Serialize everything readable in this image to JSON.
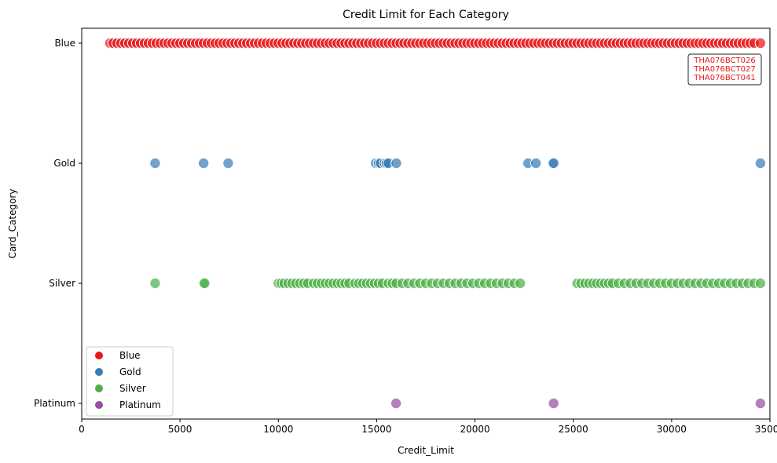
{
  "chart_data": {
    "type": "scatter",
    "title": "Credit Limit for Each Category",
    "xlabel": "Credit_Limit",
    "ylabel": "Card_Category",
    "xlim": [
      0,
      35000
    ],
    "x_ticks": [
      0,
      5000,
      10000,
      15000,
      20000,
      25000,
      30000,
      35000
    ],
    "categories": [
      "Blue",
      "Gold",
      "Silver",
      "Platinum"
    ],
    "grid": false,
    "legend_position": "lower-left",
    "series": [
      {
        "name": "Blue",
        "color": "#e41a1c",
        "x": [
          1438,
          1600,
          1800,
          2000,
          2200,
          2400,
          2600,
          2800,
          3000,
          3200,
          3400,
          3600,
          3800,
          4000,
          4200,
          4400,
          4600,
          4800,
          5000,
          5200,
          5400,
          5600,
          5800,
          6000,
          6200,
          6400,
          6600,
          6800,
          7000,
          7200,
          7400,
          7600,
          7800,
          8000,
          8200,
          8400,
          8600,
          8800,
          9000,
          9200,
          9400,
          9600,
          9800,
          10000,
          10200,
          10400,
          10600,
          10800,
          11000,
          11200,
          11400,
          11600,
          11800,
          12000,
          12200,
          12400,
          12600,
          12800,
          13000,
          13200,
          13400,
          13600,
          13800,
          14000,
          14200,
          14400,
          14600,
          14800,
          15000,
          15200,
          15400,
          15600,
          15800,
          16000,
          16200,
          16400,
          16600,
          16800,
          17000,
          17200,
          17400,
          17600,
          17800,
          18000,
          18200,
          18400,
          18600,
          18800,
          19000,
          19200,
          19400,
          19600,
          19800,
          20000,
          20200,
          20400,
          20600,
          20800,
          21000,
          21200,
          21400,
          21600,
          21800,
          22000,
          22200,
          22400,
          22600,
          22800,
          23000,
          23200,
          23400,
          23600,
          23800,
          24000,
          24200,
          24400,
          24600,
          24800,
          25000,
          25200,
          25400,
          25600,
          25800,
          26000,
          26200,
          26400,
          26600,
          26800,
          27000,
          27200,
          27400,
          27600,
          27800,
          28000,
          28200,
          28400,
          28600,
          28800,
          29000,
          29200,
          29400,
          29600,
          29800,
          30000,
          30200,
          30400,
          30600,
          30800,
          31000,
          31200,
          31400,
          31600,
          31800,
          32000,
          32200,
          32400,
          32600,
          32800,
          33000,
          33200,
          33400,
          33600,
          33800,
          34000,
          34200,
          34516
        ],
        "y": "Blue"
      },
      {
        "name": "Gold",
        "color": "#377eb8",
        "x": [
          3735,
          6200,
          7450,
          14950,
          15100,
          15200,
          15400,
          15500,
          15600,
          16000,
          22700,
          23100,
          23950,
          24000,
          34516
        ],
        "y": "Gold"
      },
      {
        "name": "Silver",
        "color": "#4daf4a",
        "x": [
          3735,
          6200,
          6250,
          10000,
          10150,
          10300,
          10500,
          10700,
          10900,
          11100,
          11300,
          11500,
          11800,
          12000,
          12200,
          12400,
          12600,
          12800,
          13000,
          13200,
          13400,
          13600,
          13900,
          14100,
          14300,
          14500,
          14700,
          14900,
          15100,
          15300,
          15600,
          15800,
          16000,
          16300,
          16600,
          16900,
          17200,
          17500,
          17800,
          18100,
          18400,
          18700,
          19000,
          19300,
          19600,
          19900,
          20200,
          20500,
          20800,
          21100,
          21400,
          21700,
          22000,
          22300,
          25200,
          25400,
          25600,
          25800,
          26000,
          26200,
          26400,
          26600,
          26800,
          27000,
          27300,
          27600,
          27900,
          28200,
          28500,
          28800,
          29100,
          29400,
          29700,
          30000,
          30300,
          30600,
          30900,
          31200,
          31500,
          31800,
          32100,
          32400,
          32700,
          33000,
          33300,
          33600,
          33900,
          34200,
          34516
        ],
        "y": "Silver"
      },
      {
        "name": "Platinum",
        "color": "#984ea3",
        "x": [
          15987,
          24000,
          34516
        ],
        "y": "Platinum"
      }
    ],
    "annotations": [
      {
        "lines": [
          "THA076BCT026",
          "THA076BCT027",
          "THA076BCT041"
        ],
        "color": "#e41a1c",
        "x": 34516,
        "y": "Blue"
      }
    ]
  }
}
